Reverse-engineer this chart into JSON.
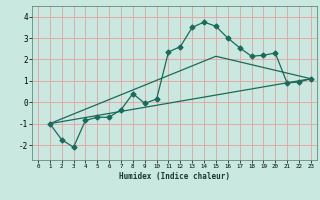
{
  "background_color": "#c8e8e0",
  "grid_color": "#e8a0a0",
  "line_color": "#1a6b5a",
  "marker": "D",
  "marker_size": 2.5,
  "xlabel": "Humidex (Indice chaleur)",
  "xlim": [
    -0.5,
    23.5
  ],
  "ylim": [
    -2.7,
    4.5
  ],
  "yticks": [
    -2,
    -1,
    0,
    1,
    2,
    3,
    4
  ],
  "xticks": [
    0,
    1,
    2,
    3,
    4,
    5,
    6,
    7,
    8,
    9,
    10,
    11,
    12,
    13,
    14,
    15,
    16,
    17,
    18,
    19,
    20,
    21,
    22,
    23
  ],
  "line1_x": [
    1,
    2,
    3,
    4,
    5,
    6,
    7,
    8,
    9,
    10,
    11,
    12,
    13,
    14,
    15,
    16,
    17,
    18,
    19,
    20,
    21,
    22,
    23
  ],
  "line1_y": [
    -1.0,
    -1.75,
    -2.1,
    -0.85,
    -0.7,
    -0.7,
    -0.35,
    0.4,
    -0.05,
    0.15,
    2.35,
    2.6,
    3.5,
    3.75,
    3.55,
    3.0,
    2.55,
    2.15,
    2.2,
    2.3,
    0.9,
    0.95,
    1.1
  ],
  "line2_x": [
    1,
    23
  ],
  "line2_y": [
    -1.0,
    1.1
  ],
  "line3_x": [
    1,
    15,
    23
  ],
  "line3_y": [
    -1.0,
    2.15,
    1.1
  ]
}
